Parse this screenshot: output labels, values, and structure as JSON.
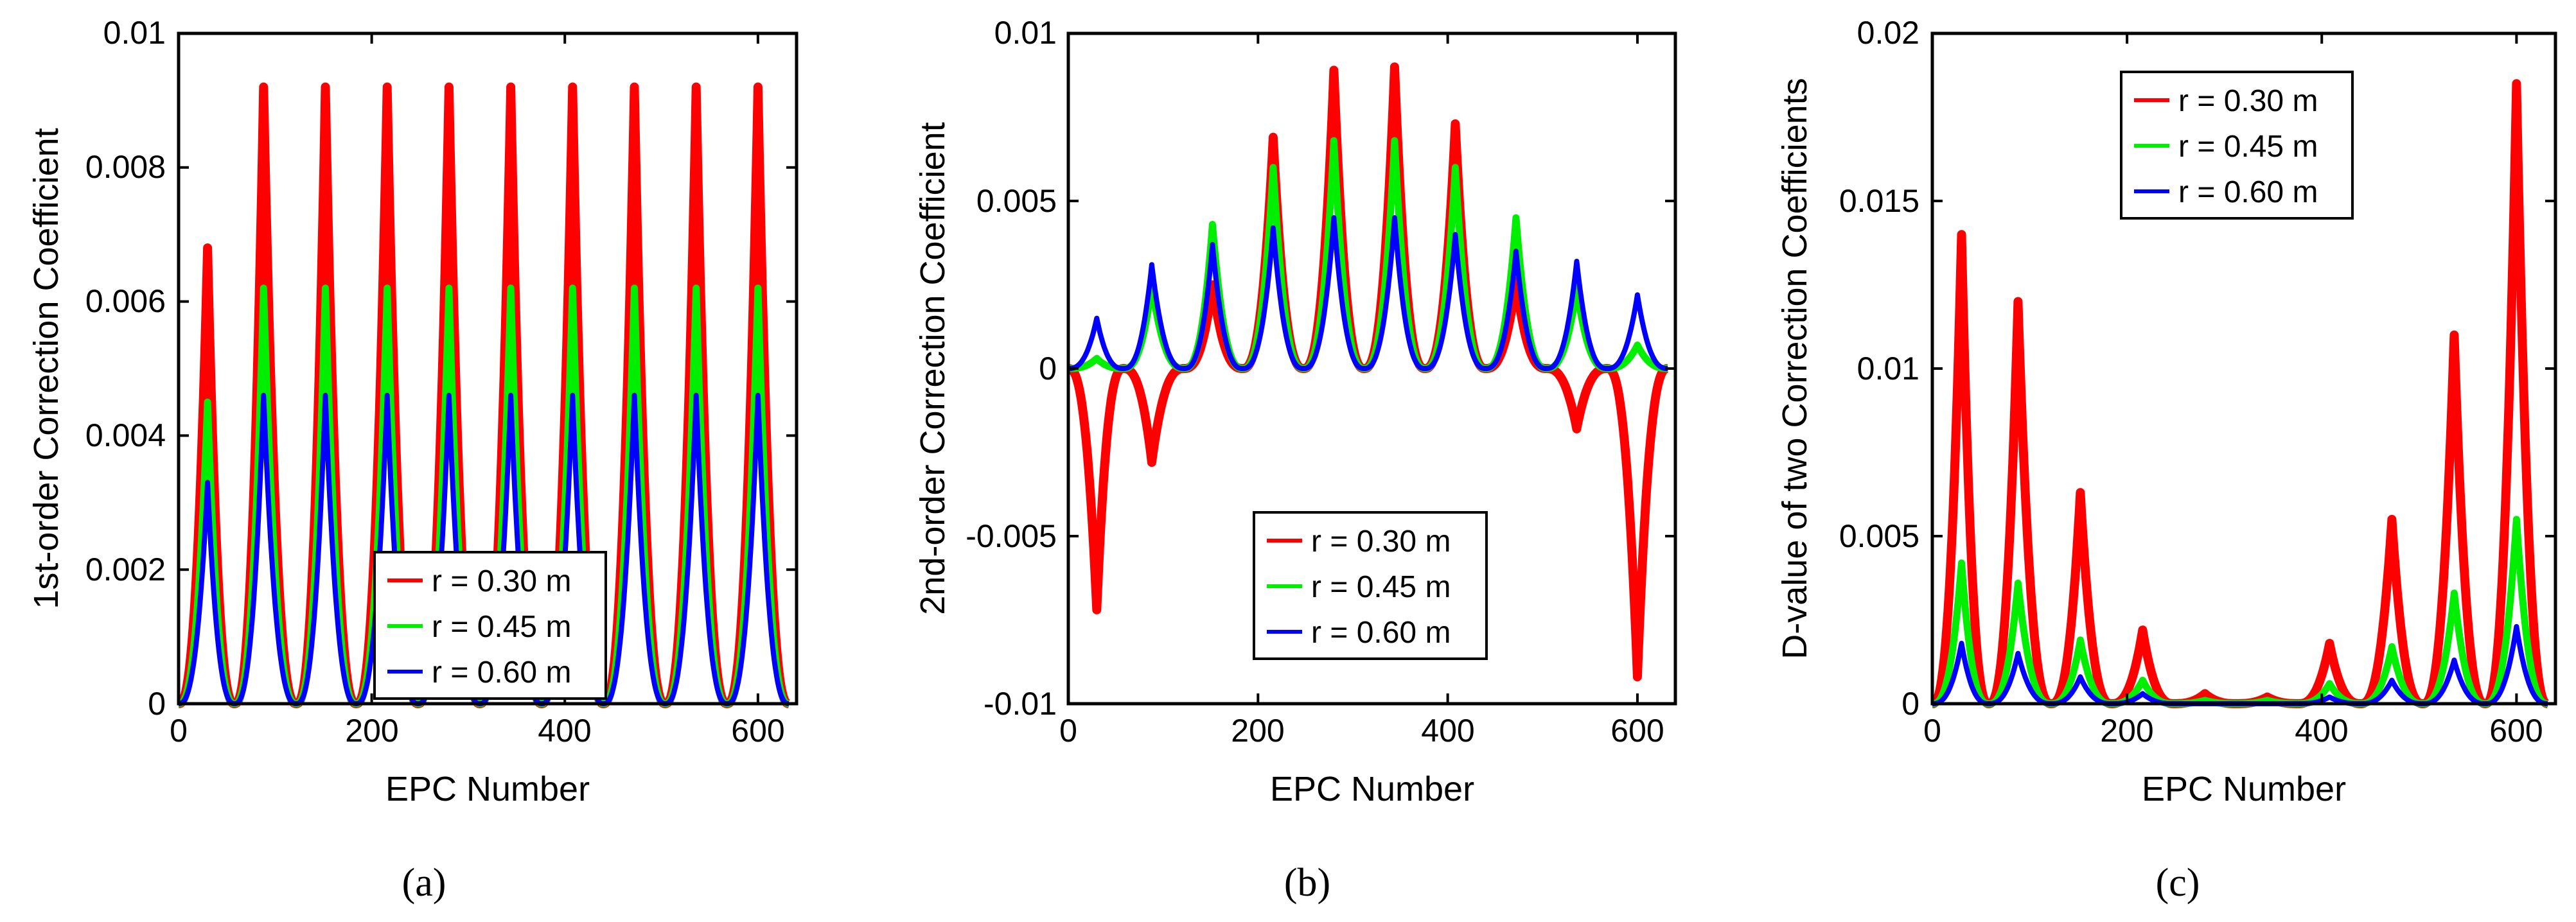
{
  "chart_data": [
    {
      "type": "line",
      "panel": "a",
      "subcaption": "(a)",
      "xlabel": "EPC Number",
      "ylabel": "1st-order Correction  Coefficient",
      "xlim": [
        0,
        640
      ],
      "ylim": [
        0,
        0.01
      ],
      "xticks": [
        0,
        200,
        400,
        600
      ],
      "xtick_labels": [
        "0",
        "200",
        "400",
        "600"
      ],
      "yticks": [
        0,
        0.002,
        0.004,
        0.006,
        0.008,
        0.01
      ],
      "ytick_labels": [
        "0",
        "0.002",
        "0.004",
        "0.006",
        "0.008",
        "0.01"
      ],
      "legend": {
        "placement": "bottom-center",
        "entries": [
          "r = 0.30 m",
          "r = 0.45 m",
          "r = 0.60 m"
        ]
      },
      "peak_x": [
        30,
        88,
        152,
        216,
        280,
        344,
        408,
        472,
        536,
        600
      ],
      "zero_x": [
        0,
        58,
        122,
        184,
        248,
        312,
        376,
        440,
        504,
        568,
        632
      ],
      "series": [
        {
          "name": "r = 0.30 m",
          "color": "#ff0000",
          "peaks": [
            0.0068,
            0.0092,
            0.0092,
            0.0092,
            0.0092,
            0.0092,
            0.0092,
            0.0092,
            0.0092,
            0.0092
          ]
        },
        {
          "name": "r = 0.45 m",
          "color": "#00ee00",
          "peaks": [
            0.0045,
            0.0062,
            0.0062,
            0.0062,
            0.0062,
            0.0062,
            0.0062,
            0.0062,
            0.0062,
            0.0062
          ]
        },
        {
          "name": "r = 0.60 m",
          "color": "#0000ff",
          "peaks": [
            0.0033,
            0.0046,
            0.0046,
            0.0046,
            0.0046,
            0.0046,
            0.0046,
            0.0046,
            0.0046,
            0.0046
          ]
        }
      ]
    },
    {
      "type": "line",
      "panel": "b",
      "subcaption": "(b)",
      "xlabel": "EPC Number",
      "ylabel": "2nd-order Correction  Coefficient",
      "xlim": [
        0,
        640
      ],
      "ylim": [
        -0.01,
        0.01
      ],
      "xticks": [
        0,
        200,
        400,
        600
      ],
      "xtick_labels": [
        "0",
        "200",
        "400",
        "600"
      ],
      "yticks": [
        -0.01,
        -0.005,
        0,
        0.005,
        0.01
      ],
      "ytick_labels": [
        "-0.01",
        "-0.005",
        "0",
        "0.005",
        "0.01"
      ],
      "legend": {
        "placement": "bottom-center",
        "entries": [
          "r = 0.30 m",
          "r = 0.45 m",
          "r = 0.60 m"
        ]
      },
      "peak_x": [
        30,
        88,
        152,
        216,
        280,
        344,
        408,
        472,
        536,
        600
      ],
      "zero_x": [
        0,
        58,
        122,
        184,
        248,
        312,
        376,
        440,
        504,
        568,
        632
      ],
      "series": [
        {
          "name": "r = 0.30 m",
          "color": "#ff0000",
          "peaks": [
            -0.0072,
            -0.0028,
            0.0025,
            0.0069,
            0.0089,
            0.009,
            0.0073,
            0.0026,
            -0.0018,
            -0.0092
          ]
        },
        {
          "name": "r = 0.45 m",
          "color": "#00ee00",
          "peaks": [
            0.0003,
            0.0025,
            0.0043,
            0.006,
            0.0068,
            0.0068,
            0.006,
            0.0045,
            0.0024,
            0.0007
          ]
        },
        {
          "name": "r = 0.60 m",
          "color": "#0000ff",
          "peaks": [
            0.0015,
            0.0031,
            0.0037,
            0.0042,
            0.0045,
            0.0045,
            0.004,
            0.0035,
            0.0032,
            0.0022
          ]
        }
      ]
    },
    {
      "type": "line",
      "panel": "c",
      "subcaption": "(c)",
      "xlabel": "EPC Number",
      "ylabel": "D-value of two Correction Coefficients",
      "xlim": [
        0,
        640
      ],
      "ylim": [
        0,
        0.02
      ],
      "xticks": [
        0,
        200,
        400,
        600
      ],
      "xtick_labels": [
        "0",
        "200",
        "400",
        "600"
      ],
      "yticks": [
        0,
        0.005,
        0.01,
        0.015,
        0.02
      ],
      "ytick_labels": [
        "0",
        "0.005",
        "0.01",
        "0.015",
        "0.02"
      ],
      "legend": {
        "placement": "top-center",
        "entries": [
          "r = 0.30 m",
          "r = 0.45 m",
          "r = 0.60 m"
        ]
      },
      "peak_x": [
        30,
        88,
        152,
        216,
        280,
        344,
        408,
        472,
        536,
        600
      ],
      "zero_x": [
        0,
        58,
        122,
        184,
        248,
        312,
        376,
        440,
        504,
        568,
        632
      ],
      "series": [
        {
          "name": "r = 0.30 m",
          "color": "#ff0000",
          "peaks": [
            0.014,
            0.012,
            0.0063,
            0.0022,
            0.0003,
            0.0002,
            0.0018,
            0.0055,
            0.011,
            0.0185
          ]
        },
        {
          "name": "r = 0.45 m",
          "color": "#00ee00",
          "peaks": [
            0.0042,
            0.0036,
            0.0019,
            0.0007,
            0.0001,
            0.0001,
            0.0006,
            0.0017,
            0.0033,
            0.0055
          ]
        },
        {
          "name": "r = 0.60 m",
          "color": "#0000ff",
          "peaks": [
            0.0018,
            0.0015,
            0.0008,
            0.0003,
            0.0,
            0.0,
            0.0002,
            0.0007,
            0.0013,
            0.0023
          ]
        }
      ]
    }
  ]
}
